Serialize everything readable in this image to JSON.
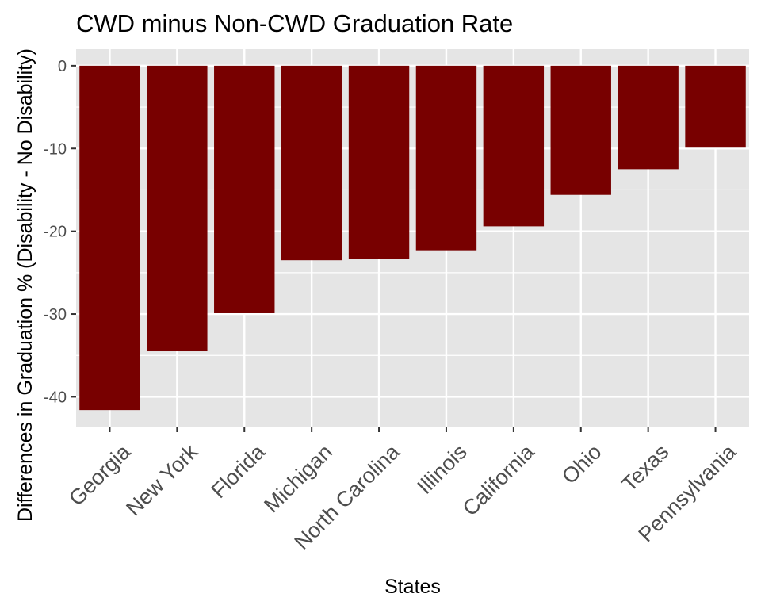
{
  "chart_data": {
    "type": "bar",
    "title": "CWD minus Non-CWD Graduation Rate",
    "xlabel": "States",
    "ylabel": "Differences in Graduation % (Disability - No Disability)",
    "categories": [
      "Georgia",
      "New York",
      "Florida",
      "Michigan",
      "North Carolina",
      "Illinois",
      "California",
      "Ohio",
      "Texas",
      "Pennsylvania"
    ],
    "values": [
      -41.6,
      -34.5,
      -29.9,
      -23.5,
      -23.3,
      -22.3,
      -19.4,
      -15.6,
      -12.5,
      -9.9
    ],
    "ylim": [
      -43.6,
      2
    ],
    "yticks": [
      0,
      -10,
      -20,
      -30,
      -40
    ],
    "bar_color": "#780000",
    "panel_color": "#e5e5e5",
    "grid": true,
    "legend": "none"
  }
}
